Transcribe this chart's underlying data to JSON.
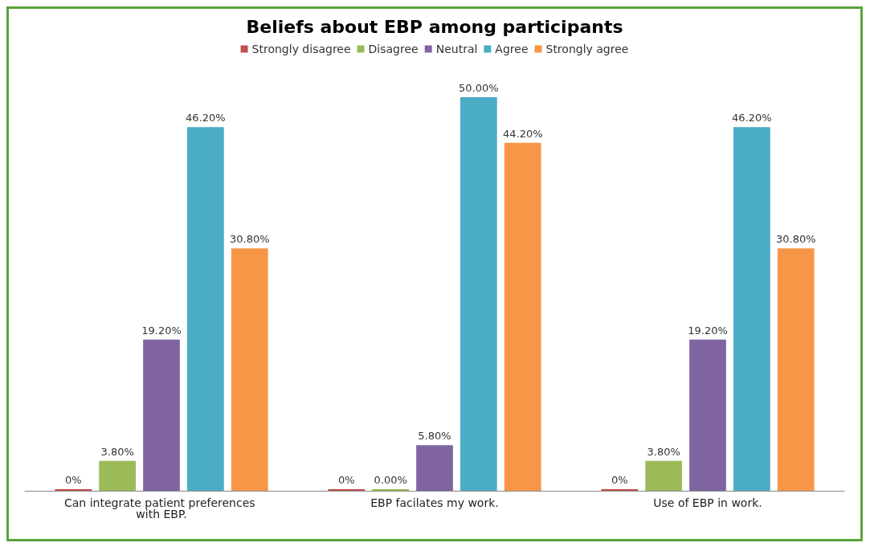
{
  "chart_data": {
    "type": "bar",
    "title": "Beliefs about EBP among participants",
    "categories": [
      "Can integrate patient preferences with EBP.",
      "EBP facilates my work.",
      "Use of EBP in work."
    ],
    "series": [
      {
        "name": "Strongly disagree",
        "color": "#c0504d",
        "values": [
          0,
          0,
          0
        ],
        "value_labels": [
          "0%",
          "0%",
          "0%"
        ]
      },
      {
        "name": "Disagree",
        "color": "#9bbb59",
        "values": [
          3.8,
          0,
          3.8
        ],
        "value_labels": [
          "3.80%",
          "0.00%",
          "3.80%"
        ]
      },
      {
        "name": "Neutral",
        "color": "#8064a2",
        "values": [
          19.2,
          5.8,
          19.2
        ],
        "value_labels": [
          "19.20%",
          "5.80%",
          "19.20%"
        ]
      },
      {
        "name": "Agree",
        "color": "#4bacc6",
        "values": [
          46.2,
          50,
          46.2
        ],
        "value_labels": [
          "46.20%",
          "50.00%",
          "46.20%"
        ]
      },
      {
        "name": "Strongly agree",
        "color": "#f79646",
        "values": [
          30.8,
          44.2,
          30.8
        ],
        "value_labels": [
          "30.80%",
          "44.20%",
          "30.80%"
        ]
      }
    ],
    "legend": "top"
  }
}
